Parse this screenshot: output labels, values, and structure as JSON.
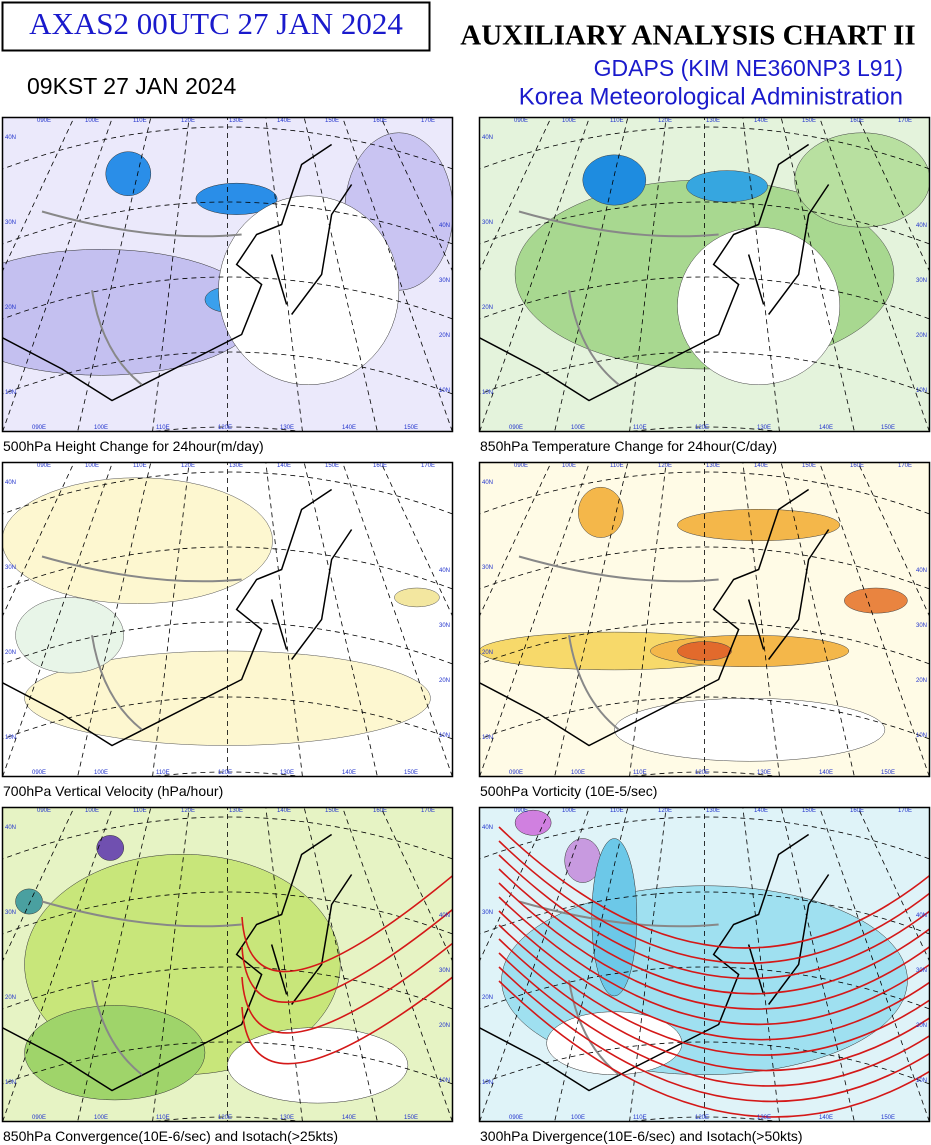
{
  "header": {
    "product": "AXAS2  00UTC 27 JAN 2024",
    "local_time": "09KST 27 JAN 2024",
    "title": "AUXILIARY ANALYSIS CHART II",
    "model": "GDAPS (KIM NE360NP3 L91)",
    "agency": "Korea Meteorological Administration"
  },
  "map_labels": {
    "longitudes": [
      "090E",
      "100E",
      "110E",
      "120E",
      "130E",
      "140E",
      "150E",
      "160E",
      "170E"
    ],
    "latitudes": [
      "40N",
      "30N",
      "20N",
      "10N"
    ]
  },
  "panels": [
    {
      "caption": "500hPa Height Change for 24hour(m/day)"
    },
    {
      "caption": "850hPa Temperature Change for 24hour(C/day)"
    },
    {
      "caption": "700hPa Vertical Velocity (hPa/hour)"
    },
    {
      "caption": "500hPa Vorticity (10E-5/sec)"
    },
    {
      "caption": "850hPa Convergence(10E-6/sec) and Isotach(>25kts)"
    },
    {
      "caption": "300hPa Divergence(10E-6/sec) and Isotach(>50kts)"
    }
  ]
}
